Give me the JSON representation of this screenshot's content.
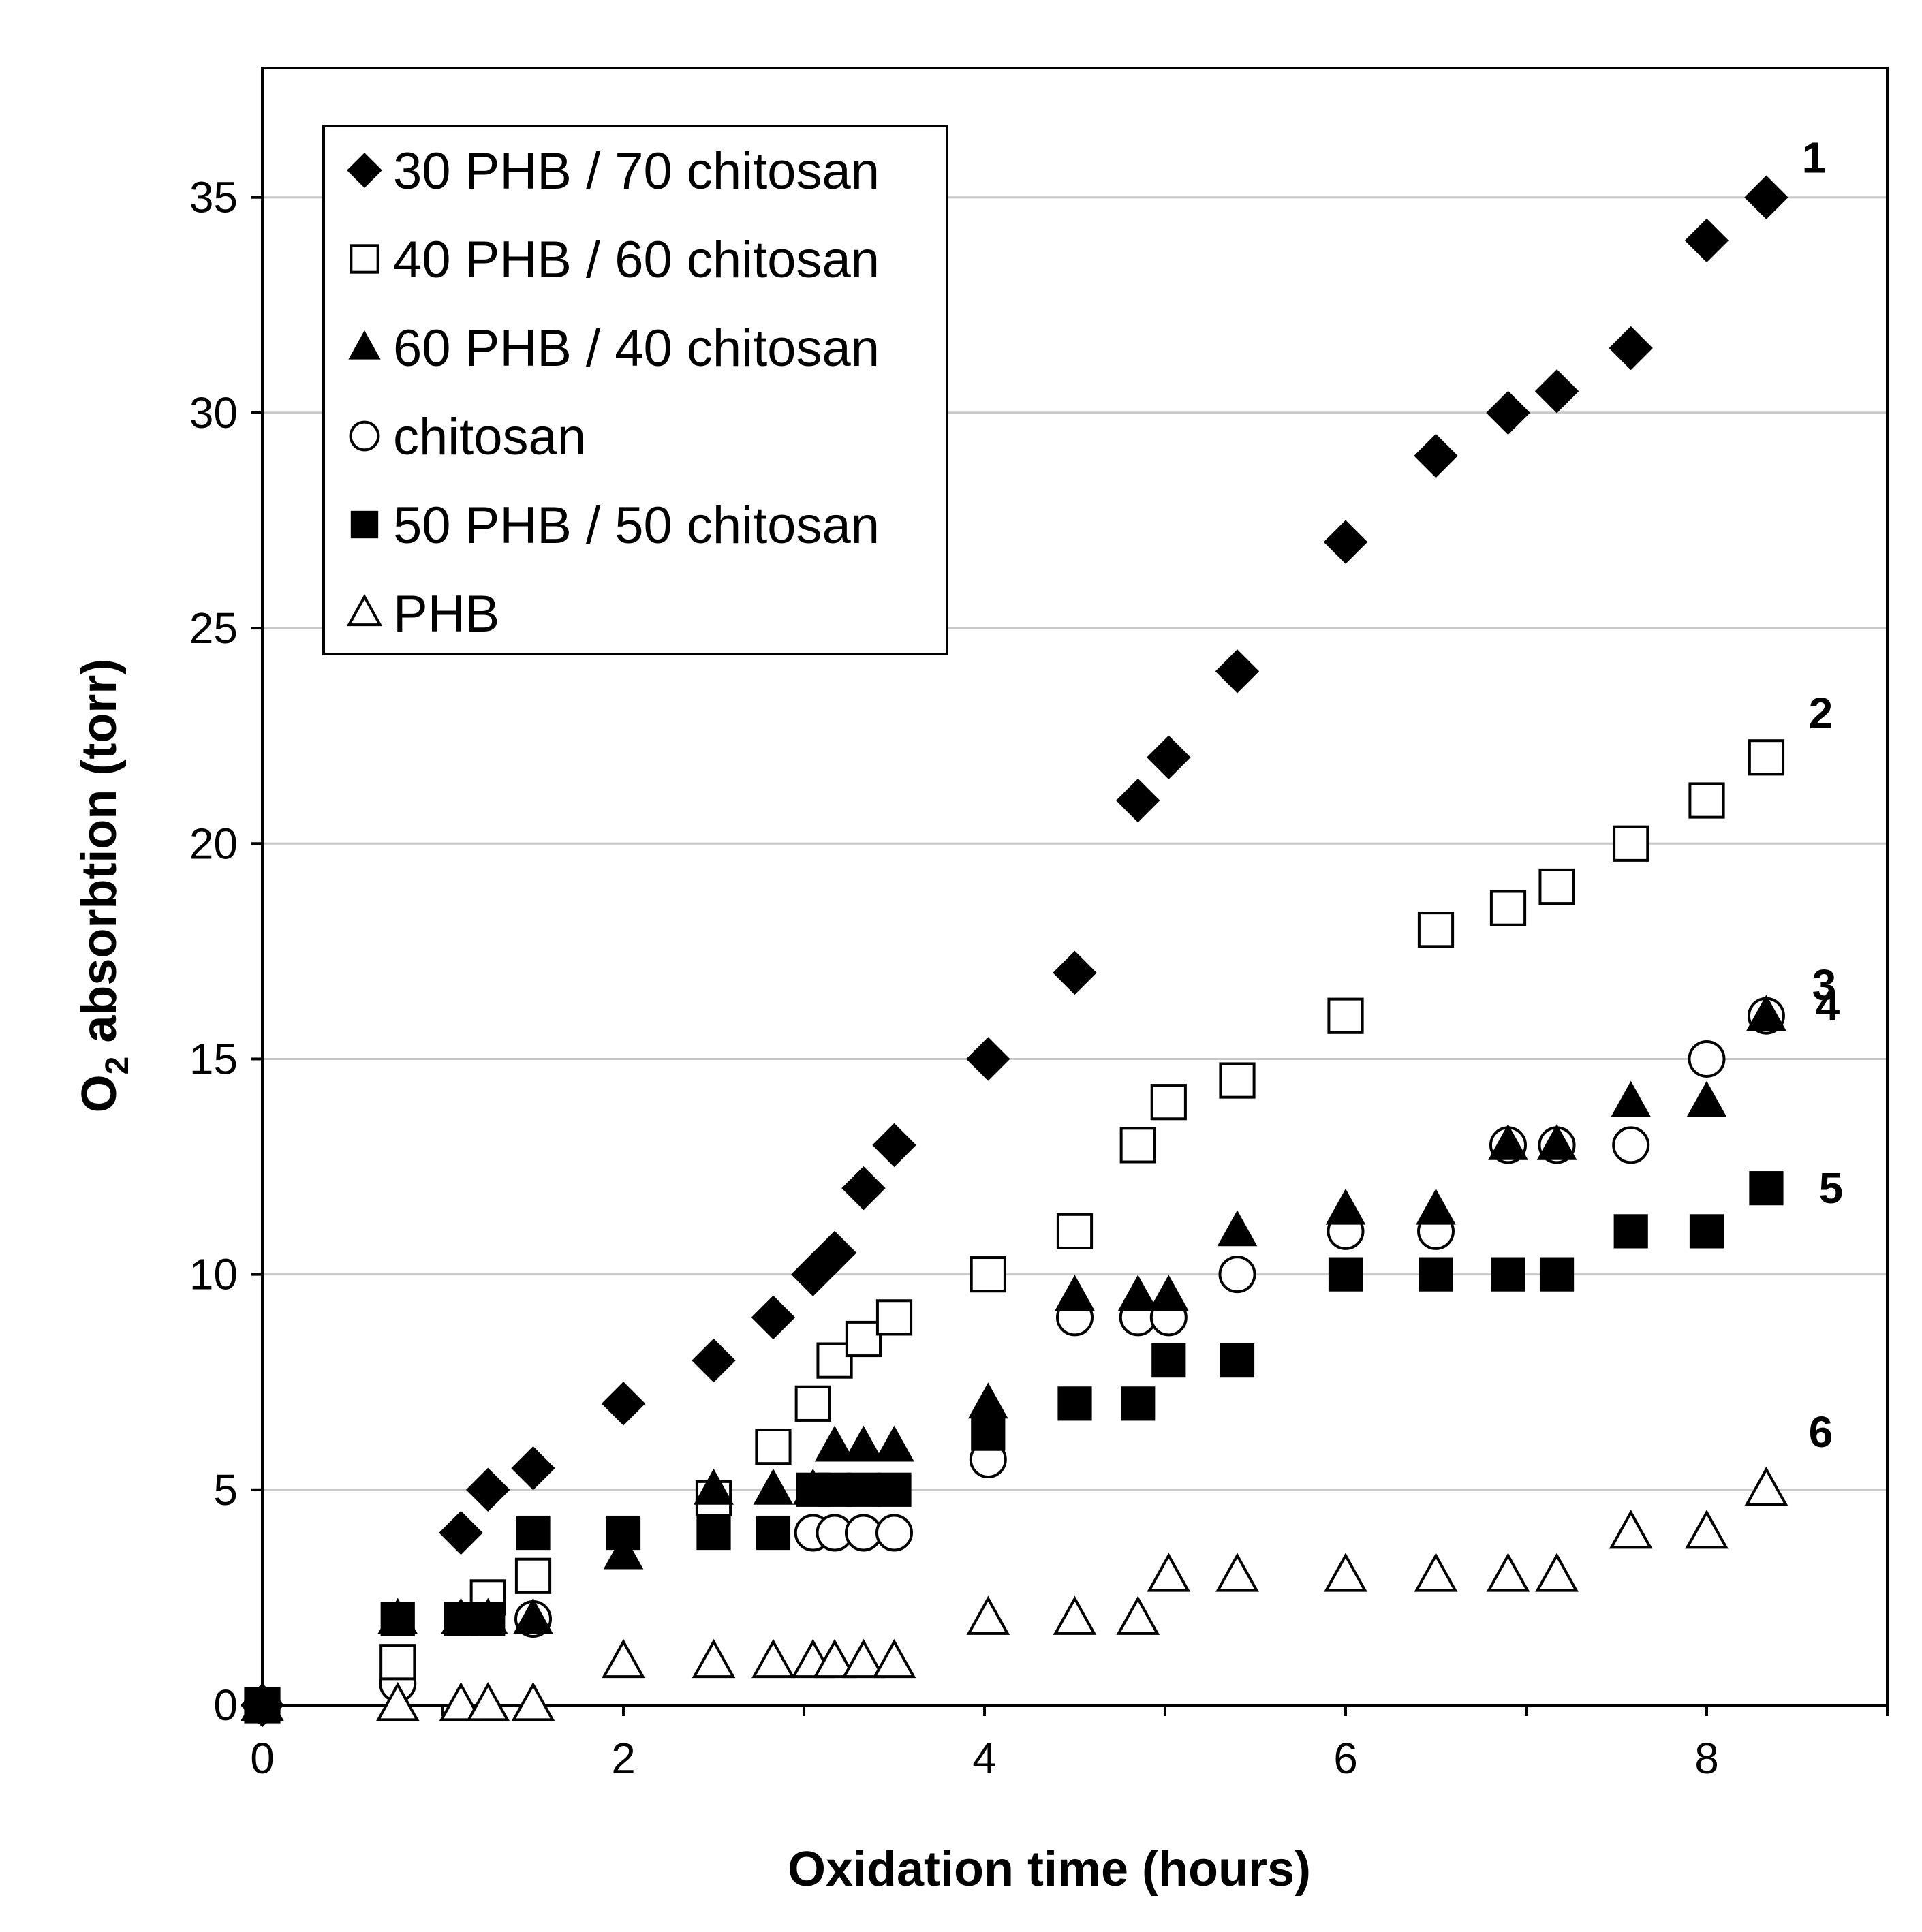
{
  "chart_data": {
    "type": "scatter",
    "title": "",
    "xlabel": "Oxidation time (hours)",
    "ylabel_main": "O",
    "ylabel_sub": "2",
    "ylabel_rest": " absorbtion (torr)",
    "xlim": [
      0,
      9
    ],
    "ylim": [
      0,
      38
    ],
    "xticks": [
      0,
      2,
      4,
      6,
      8
    ],
    "yticks": [
      0,
      5,
      10,
      15,
      20,
      25,
      30,
      35
    ],
    "grid": "horizontal",
    "legend_position": "top-left",
    "series": [
      {
        "name": "30 PHB / 70 chitosan",
        "marker": "diamond-filled",
        "curve_label": "1",
        "x": [
          0,
          1.1,
          1.25,
          1.5,
          2.0,
          2.5,
          2.83,
          3.05,
          3.17,
          3.33,
          3.5,
          4.02,
          4.5,
          4.85,
          5.02,
          5.4,
          6.0,
          6.5,
          6.9,
          7.17,
          7.58,
          8.0,
          8.33
        ],
        "y": [
          0,
          4,
          5,
          5.5,
          7,
          8,
          9,
          10,
          10.5,
          12,
          13,
          15,
          17,
          21,
          22,
          24,
          27,
          29,
          30,
          30.5,
          31.5,
          34,
          35
        ]
      },
      {
        "name": "40 PHB / 60 chitosan",
        "marker": "square-open",
        "curve_label": "2",
        "x": [
          0,
          0.75,
          1.25,
          1.5,
          2.5,
          2.83,
          3.05,
          3.17,
          3.33,
          3.5,
          4.02,
          4.5,
          4.85,
          5.02,
          5.4,
          6.0,
          6.5,
          6.9,
          7.17,
          7.58,
          8.0,
          8.33
        ],
        "y": [
          0,
          1,
          2.5,
          3,
          4.8,
          6,
          7,
          8,
          8.5,
          9,
          10,
          11,
          13,
          14,
          14.5,
          16,
          18,
          18.5,
          19,
          20,
          21,
          22
        ]
      },
      {
        "name": "60 PHB / 40 chitosan",
        "marker": "triangle-filled",
        "curve_label": "3",
        "x": [
          0,
          0.75,
          1.1,
          1.25,
          1.5,
          2.0,
          2.5,
          2.83,
          3.05,
          3.17,
          3.33,
          3.5,
          4.02,
          4.5,
          4.85,
          5.02,
          5.4,
          6.0,
          6.5,
          6.9,
          7.17,
          7.58,
          8.0,
          8.33
        ],
        "y": [
          0,
          2,
          2,
          2,
          2,
          3.5,
          5,
          5,
          5,
          6,
          6,
          6,
          7,
          9.5,
          9.5,
          9.5,
          11,
          11.5,
          11.5,
          13,
          13,
          14,
          14,
          16
        ]
      },
      {
        "name": "chitosan",
        "marker": "circle-open",
        "curve_label": "4",
        "x": [
          0,
          0.75,
          1.5,
          3.05,
          3.17,
          3.33,
          3.5,
          4.02,
          4.5,
          4.85,
          5.02,
          5.4,
          6.0,
          6.5,
          6.9,
          7.17,
          7.58,
          8.0,
          8.33
        ],
        "y": [
          0,
          0.5,
          2,
          4,
          4,
          4,
          4,
          5.7,
          9,
          9,
          9,
          10,
          11,
          11,
          13,
          13,
          13,
          15,
          16
        ]
      },
      {
        "name": "50 PHB / 50 chitosan",
        "marker": "square-filled",
        "curve_label": "5",
        "x": [
          0,
          0.75,
          1.1,
          1.25,
          1.5,
          2.0,
          2.5,
          2.83,
          3.05,
          3.17,
          3.33,
          3.5,
          4.02,
          4.5,
          4.85,
          5.02,
          5.4,
          6.0,
          6.5,
          6.9,
          7.17,
          7.58,
          8.0,
          8.33
        ],
        "y": [
          0,
          2,
          2,
          2,
          4,
          4,
          4,
          4,
          5,
          5,
          5,
          5,
          6.3,
          7,
          7,
          8,
          8,
          10,
          10,
          10,
          10,
          11,
          11,
          12
        ]
      },
      {
        "name": "PHB",
        "marker": "triangle-open",
        "curve_label": "6",
        "x": [
          0,
          0.75,
          1.1,
          1.25,
          1.5,
          2.0,
          2.5,
          2.83,
          3.05,
          3.17,
          3.33,
          3.5,
          4.02,
          4.5,
          4.85,
          5.02,
          5.4,
          6.0,
          6.5,
          6.9,
          7.17,
          7.58,
          8.0,
          8.33
        ],
        "y": [
          0,
          0,
          0,
          0,
          0,
          1,
          1,
          1,
          1,
          1,
          1,
          1,
          2,
          2,
          2,
          3,
          3,
          3,
          3,
          3,
          3,
          4,
          4,
          5
        ]
      }
    ]
  }
}
